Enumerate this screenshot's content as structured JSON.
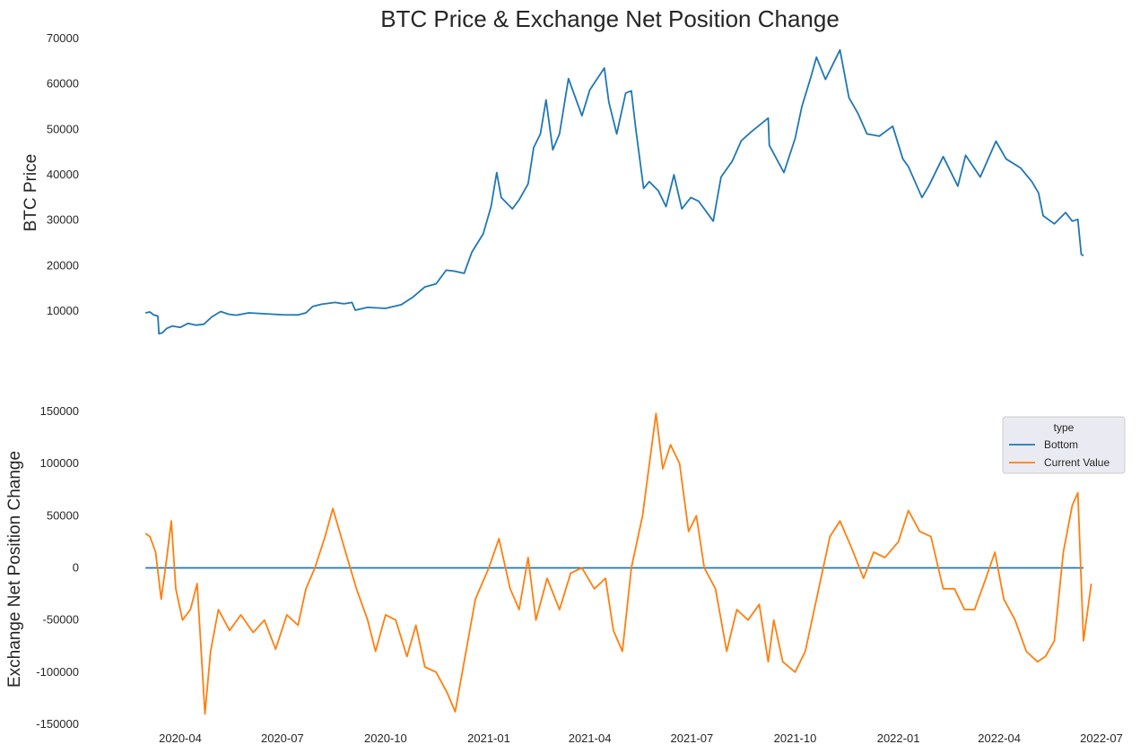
{
  "chart_data": [
    {
      "type": "line",
      "title": "BTC Price & Exchange Net Position Change",
      "ylabel": "BTC  Price",
      "xlabel": "",
      "ylim": [
        4000,
        70000
      ],
      "yticks": [
        10000,
        20000,
        30000,
        40000,
        50000,
        60000,
        70000
      ],
      "grid": false,
      "series": [
        {
          "color": "#1f77b4",
          "points": [
            [
              "2020-03-01",
              9600
            ],
            [
              "2020-03-05",
              9800
            ],
            [
              "2020-03-08",
              9200
            ],
            [
              "2020-03-12",
              8900
            ],
            [
              "2020-03-13",
              5000
            ],
            [
              "2020-03-16",
              5200
            ],
            [
              "2020-03-20",
              6200
            ],
            [
              "2020-03-25",
              6700
            ],
            [
              "2020-04-01",
              6400
            ],
            [
              "2020-04-08",
              7300
            ],
            [
              "2020-04-15",
              6900
            ],
            [
              "2020-04-22",
              7100
            ],
            [
              "2020-04-29",
              8700
            ],
            [
              "2020-05-07",
              9900
            ],
            [
              "2020-05-14",
              9300
            ],
            [
              "2020-05-21",
              9100
            ],
            [
              "2020-06-01",
              9600
            ],
            [
              "2020-06-15",
              9400
            ],
            [
              "2020-07-01",
              9200
            ],
            [
              "2020-07-15",
              9150
            ],
            [
              "2020-07-22",
              9600
            ],
            [
              "2020-07-28",
              11000
            ],
            [
              "2020-08-05",
              11500
            ],
            [
              "2020-08-17",
              11900
            ],
            [
              "2020-08-25",
              11600
            ],
            [
              "2020-09-01",
              11900
            ],
            [
              "2020-09-04",
              10200
            ],
            [
              "2020-09-15",
              10800
            ],
            [
              "2020-10-01",
              10600
            ],
            [
              "2020-10-15",
              11400
            ],
            [
              "2020-10-25",
              13000
            ],
            [
              "2020-11-05",
              15300
            ],
            [
              "2020-11-15",
              16000
            ],
            [
              "2020-11-24",
              19000
            ],
            [
              "2020-12-01",
              18800
            ],
            [
              "2020-12-10",
              18300
            ],
            [
              "2020-12-17",
              23000
            ],
            [
              "2020-12-27",
              27000
            ],
            [
              "2021-01-03",
              33000
            ],
            [
              "2021-01-08",
              40500
            ],
            [
              "2021-01-12",
              35000
            ],
            [
              "2021-01-22",
              32500
            ],
            [
              "2021-01-28",
              34500
            ],
            [
              "2021-02-05",
              38000
            ],
            [
              "2021-02-10",
              46000
            ],
            [
              "2021-02-16",
              49000
            ],
            [
              "2021-02-21",
              56500
            ],
            [
              "2021-02-27",
              45500
            ],
            [
              "2021-03-05",
              49000
            ],
            [
              "2021-03-13",
              61200
            ],
            [
              "2021-03-25",
              53000
            ],
            [
              "2021-04-01",
              58700
            ],
            [
              "2021-04-14",
              63500
            ],
            [
              "2021-04-18",
              56000
            ],
            [
              "2021-04-25",
              49000
            ],
            [
              "2021-05-03",
              58000
            ],
            [
              "2021-05-08",
              58500
            ],
            [
              "2021-05-12",
              50000
            ],
            [
              "2021-05-19",
              37000
            ],
            [
              "2021-05-24",
              38500
            ],
            [
              "2021-06-01",
              36500
            ],
            [
              "2021-06-08",
              33000
            ],
            [
              "2021-06-15",
              40000
            ],
            [
              "2021-06-22",
              32500
            ],
            [
              "2021-06-30",
              35000
            ],
            [
              "2021-07-07",
              34200
            ],
            [
              "2021-07-20",
              29800
            ],
            [
              "2021-07-27",
              39500
            ],
            [
              "2021-08-06",
              43000
            ],
            [
              "2021-08-14",
              47500
            ],
            [
              "2021-08-23",
              49500
            ],
            [
              "2021-09-07",
              52500
            ],
            [
              "2021-09-08",
              46500
            ],
            [
              "2021-09-21",
              40500
            ],
            [
              "2021-10-01",
              48000
            ],
            [
              "2021-10-07",
              55000
            ],
            [
              "2021-10-15",
              61500
            ],
            [
              "2021-10-20",
              65900
            ],
            [
              "2021-10-28",
              61000
            ],
            [
              "2021-11-10",
              67500
            ],
            [
              "2021-11-18",
              57000
            ],
            [
              "2021-11-26",
              53500
            ],
            [
              "2021-12-04",
              49000
            ],
            [
              "2021-12-15",
              48500
            ],
            [
              "2021-12-27",
              50700
            ],
            [
              "2022-01-05",
              43500
            ],
            [
              "2022-01-10",
              41800
            ],
            [
              "2022-01-22",
              35000
            ],
            [
              "2022-01-28",
              37500
            ],
            [
              "2022-02-10",
              44000
            ],
            [
              "2022-02-23",
              37500
            ],
            [
              "2022-03-02",
              44300
            ],
            [
              "2022-03-15",
              39500
            ],
            [
              "2022-03-29",
              47400
            ],
            [
              "2022-04-07",
              43500
            ],
            [
              "2022-04-20",
              41500
            ],
            [
              "2022-04-30",
              38500
            ],
            [
              "2022-05-06",
              36000
            ],
            [
              "2022-05-10",
              31000
            ],
            [
              "2022-05-20",
              29200
            ],
            [
              "2022-05-30",
              31700
            ],
            [
              "2022-06-05",
              29800
            ],
            [
              "2022-06-10",
              30200
            ],
            [
              "2022-06-13",
              22500
            ],
            [
              "2022-06-15",
              22200
            ]
          ]
        }
      ]
    },
    {
      "type": "line",
      "title": "",
      "ylabel": "Exchange Net Position Change",
      "xlabel": "",
      "ylim": [
        -150000,
        150000
      ],
      "yticks": [
        -150000,
        -100000,
        -50000,
        0,
        50000,
        100000,
        150000
      ],
      "grid": false,
      "xticks": [
        "2020-04",
        "2020-07",
        "2020-10",
        "2021-01",
        "2021-04",
        "2021-07",
        "2021-10",
        "2022-01",
        "2022-04",
        "2022-07"
      ],
      "legend": {
        "title": "type",
        "position": "upper-right",
        "entries": [
          "Bottom",
          "Current Value"
        ]
      },
      "series": [
        {
          "name": "Bottom",
          "color": "#1f77b4",
          "points": [
            [
              "2020-03-01",
              0
            ],
            [
              "2022-06-15",
              0
            ]
          ]
        },
        {
          "name": "Current Value",
          "color": "#ff7f0e",
          "points": [
            [
              "2020-03-01",
              33000
            ],
            [
              "2020-03-05",
              30000
            ],
            [
              "2020-03-10",
              15000
            ],
            [
              "2020-03-15",
              -30000
            ],
            [
              "2020-03-20",
              10000
            ],
            [
              "2020-03-24",
              45000
            ],
            [
              "2020-03-28",
              -20000
            ],
            [
              "2020-04-03",
              -50000
            ],
            [
              "2020-04-10",
              -40000
            ],
            [
              "2020-04-16",
              -15000
            ],
            [
              "2020-04-23",
              -140000
            ],
            [
              "2020-04-28",
              -80000
            ],
            [
              "2020-05-05",
              -40000
            ],
            [
              "2020-05-15",
              -60000
            ],
            [
              "2020-05-25",
              -45000
            ],
            [
              "2020-06-05",
              -62000
            ],
            [
              "2020-06-15",
              -50000
            ],
            [
              "2020-06-25",
              -78000
            ],
            [
              "2020-07-05",
              -45000
            ],
            [
              "2020-07-15",
              -55000
            ],
            [
              "2020-07-22",
              -20000
            ],
            [
              "2020-07-30",
              0
            ],
            [
              "2020-08-08",
              30000
            ],
            [
              "2020-08-15",
              57000
            ],
            [
              "2020-08-25",
              20000
            ],
            [
              "2020-09-05",
              -20000
            ],
            [
              "2020-09-15",
              -50000
            ],
            [
              "2020-09-22",
              -80000
            ],
            [
              "2020-10-01",
              -45000
            ],
            [
              "2020-10-10",
              -50000
            ],
            [
              "2020-10-20",
              -85000
            ],
            [
              "2020-10-28",
              -55000
            ],
            [
              "2020-11-05",
              -95000
            ],
            [
              "2020-11-15",
              -100000
            ],
            [
              "2020-11-25",
              -120000
            ],
            [
              "2020-12-02",
              -138000
            ],
            [
              "2020-12-10",
              -90000
            ],
            [
              "2020-12-20",
              -30000
            ],
            [
              "2021-01-01",
              0
            ],
            [
              "2021-01-10",
              28000
            ],
            [
              "2021-01-20",
              -20000
            ],
            [
              "2021-01-28",
              -40000
            ],
            [
              "2021-02-05",
              10000
            ],
            [
              "2021-02-12",
              -50000
            ],
            [
              "2021-02-22",
              -10000
            ],
            [
              "2021-03-05",
              -40000
            ],
            [
              "2021-03-15",
              -5000
            ],
            [
              "2021-03-25",
              0
            ],
            [
              "2021-04-05",
              -20000
            ],
            [
              "2021-04-15",
              -10000
            ],
            [
              "2021-04-22",
              -60000
            ],
            [
              "2021-04-30",
              -80000
            ],
            [
              "2021-05-08",
              0
            ],
            [
              "2021-05-18",
              50000
            ],
            [
              "2021-05-30",
              148000
            ],
            [
              "2021-06-05",
              95000
            ],
            [
              "2021-06-12",
              118000
            ],
            [
              "2021-06-20",
              100000
            ],
            [
              "2021-06-28",
              35000
            ],
            [
              "2021-07-05",
              50000
            ],
            [
              "2021-07-12",
              0
            ],
            [
              "2021-07-22",
              -20000
            ],
            [
              "2021-08-01",
              -80000
            ],
            [
              "2021-08-10",
              -40000
            ],
            [
              "2021-08-20",
              -50000
            ],
            [
              "2021-08-30",
              -35000
            ],
            [
              "2021-09-07",
              -90000
            ],
            [
              "2021-09-12",
              -50000
            ],
            [
              "2021-09-20",
              -90000
            ],
            [
              "2021-10-01",
              -100000
            ],
            [
              "2021-10-10",
              -80000
            ],
            [
              "2021-10-20",
              -30000
            ],
            [
              "2021-11-01",
              30000
            ],
            [
              "2021-11-10",
              45000
            ],
            [
              "2021-11-20",
              20000
            ],
            [
              "2021-12-01",
              -10000
            ],
            [
              "2021-12-10",
              15000
            ],
            [
              "2021-12-20",
              10000
            ],
            [
              "2022-01-01",
              25000
            ],
            [
              "2022-01-10",
              55000
            ],
            [
              "2022-01-20",
              35000
            ],
            [
              "2022-01-30",
              30000
            ],
            [
              "2022-02-10",
              -20000
            ],
            [
              "2022-02-20",
              -20000
            ],
            [
              "2022-03-01",
              -40000
            ],
            [
              "2022-03-10",
              -40000
            ],
            [
              "2022-03-20",
              -10000
            ],
            [
              "2022-03-28",
              15000
            ],
            [
              "2022-04-05",
              -30000
            ],
            [
              "2022-04-15",
              -50000
            ],
            [
              "2022-04-25",
              -80000
            ],
            [
              "2022-05-05",
              -90000
            ],
            [
              "2022-05-12",
              -85000
            ],
            [
              "2022-05-20",
              -70000
            ],
            [
              "2022-05-28",
              15000
            ],
            [
              "2022-06-05",
              60000
            ],
            [
              "2022-06-10",
              72000
            ],
            [
              "2022-06-15",
              -70000
            ],
            [
              "2022-06-22",
              -15000
            ]
          ]
        }
      ]
    }
  ]
}
